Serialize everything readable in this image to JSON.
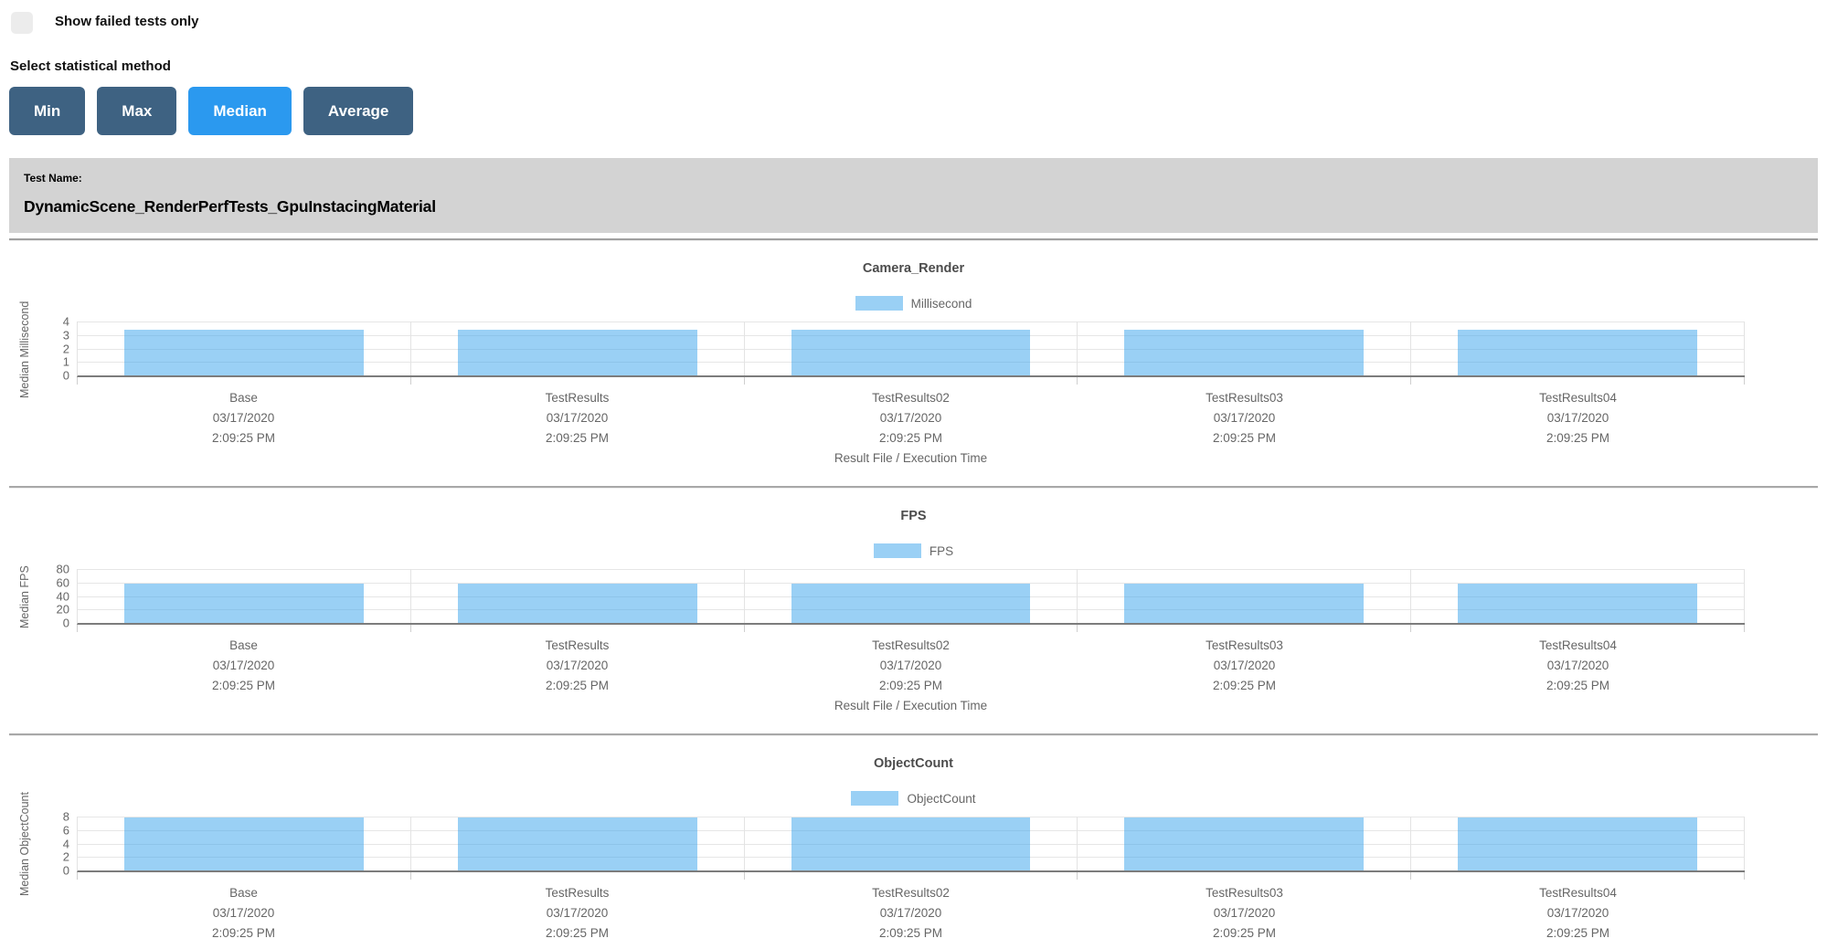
{
  "controls": {
    "show_failed_label": "Show failed tests only",
    "stat_method_label": "Select statistical method",
    "buttons": [
      {
        "label": "Min",
        "active": false
      },
      {
        "label": "Max",
        "active": false
      },
      {
        "label": "Median",
        "active": true
      },
      {
        "label": "Average",
        "active": false
      }
    ]
  },
  "test_header": {
    "label": "Test Name:",
    "name": "DynamicScene_RenderPerfTests_GpuInstacingMaterial"
  },
  "colors": {
    "bar_fill": "rgba(54, 162, 235, 0.5)",
    "bar_base": "#36a2eb",
    "button_active": "#2b99ef",
    "button_inactive": "#3e6282",
    "panel_bg": "#d3d3d3",
    "grid": "#e6e6e6",
    "axis": "#7c7c7c",
    "tick_text": "#666666"
  },
  "chart_data": [
    {
      "type": "bar",
      "title": "Camera_Render",
      "legend": "Millisecond",
      "ylabel": "Median Millisecond",
      "xlabel": "Result File / Execution Time",
      "show_xlabel": true,
      "ylim": [
        0,
        4
      ],
      "yticks": [
        0,
        1,
        2,
        3,
        4
      ],
      "categories": [
        {
          "name": "Base",
          "date": "03/17/2020",
          "time": "2:09:25 PM"
        },
        {
          "name": "TestResults",
          "date": "03/17/2020",
          "time": "2:09:25 PM"
        },
        {
          "name": "TestResults02",
          "date": "03/17/2020",
          "time": "2:09:25 PM"
        },
        {
          "name": "TestResults03",
          "date": "03/17/2020",
          "time": "2:09:25 PM"
        },
        {
          "name": "TestResults04",
          "date": "03/17/2020",
          "time": "2:09:25 PM"
        }
      ],
      "values": [
        3.4,
        3.4,
        3.4,
        3.4,
        3.4
      ]
    },
    {
      "type": "bar",
      "title": "FPS",
      "legend": "FPS",
      "ylabel": "Median FPS",
      "xlabel": "Result File / Execution Time",
      "show_xlabel": true,
      "ylim": [
        0,
        80
      ],
      "yticks": [
        0,
        20,
        40,
        60,
        80
      ],
      "categories": [
        {
          "name": "Base",
          "date": "03/17/2020",
          "time": "2:09:25 PM"
        },
        {
          "name": "TestResults",
          "date": "03/17/2020",
          "time": "2:09:25 PM"
        },
        {
          "name": "TestResults02",
          "date": "03/17/2020",
          "time": "2:09:25 PM"
        },
        {
          "name": "TestResults03",
          "date": "03/17/2020",
          "time": "2:09:25 PM"
        },
        {
          "name": "TestResults04",
          "date": "03/17/2020",
          "time": "2:09:25 PM"
        }
      ],
      "values": [
        58,
        58,
        58,
        58,
        58
      ]
    },
    {
      "type": "bar",
      "title": "ObjectCount",
      "legend": "ObjectCount",
      "ylabel": "Median ObjectCount",
      "xlabel": "",
      "show_xlabel": false,
      "ylim": [
        0,
        8
      ],
      "yticks": [
        0,
        2,
        4,
        6,
        8
      ],
      "categories": [
        {
          "name": "Base",
          "date": "03/17/2020",
          "time": "2:09:25 PM"
        },
        {
          "name": "TestResults",
          "date": "03/17/2020",
          "time": "2:09:25 PM"
        },
        {
          "name": "TestResults02",
          "date": "03/17/2020",
          "time": "2:09:25 PM"
        },
        {
          "name": "TestResults03",
          "date": "03/17/2020",
          "time": "2:09:25 PM"
        },
        {
          "name": "TestResults04",
          "date": "03/17/2020",
          "time": "2:09:25 PM"
        }
      ],
      "values": [
        7.9,
        7.9,
        7.9,
        7.9,
        7.9
      ]
    }
  ]
}
